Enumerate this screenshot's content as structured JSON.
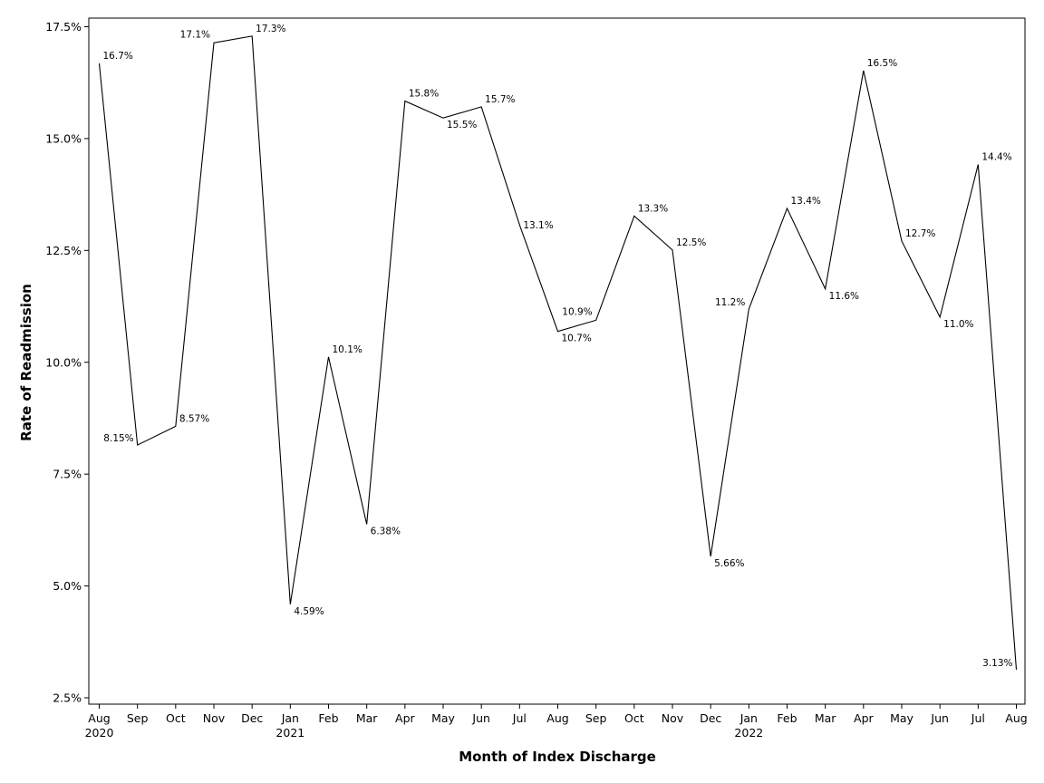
{
  "chart_data": {
    "type": "line",
    "title": "",
    "xlabel": "Month of Index Discharge",
    "ylabel": "Rate of Readmission",
    "ylim": [
      2.5,
      17.5
    ],
    "yticks": [
      {
        "value": 2.5,
        "label": "2.5%"
      },
      {
        "value": 5.0,
        "label": "5.0%"
      },
      {
        "value": 7.5,
        "label": "7.5%"
      },
      {
        "value": 10.0,
        "label": "10.0%"
      },
      {
        "value": 12.5,
        "label": "12.5%"
      },
      {
        "value": 15.0,
        "label": "15.0%"
      },
      {
        "value": 17.5,
        "label": "17.5%"
      }
    ],
    "grid": false,
    "line_color": "#000000",
    "categories": [
      {
        "month": "Aug",
        "year": "2020"
      },
      {
        "month": "Sep",
        "year": ""
      },
      {
        "month": "Oct",
        "year": ""
      },
      {
        "month": "Nov",
        "year": ""
      },
      {
        "month": "Dec",
        "year": ""
      },
      {
        "month": "Jan",
        "year": "2021"
      },
      {
        "month": "Feb",
        "year": ""
      },
      {
        "month": "Mar",
        "year": ""
      },
      {
        "month": "Apr",
        "year": ""
      },
      {
        "month": "May",
        "year": ""
      },
      {
        "month": "Jun",
        "year": ""
      },
      {
        "month": "Jul",
        "year": ""
      },
      {
        "month": "Aug",
        "year": ""
      },
      {
        "month": "Sep",
        "year": ""
      },
      {
        "month": "Oct",
        "year": ""
      },
      {
        "month": "Nov",
        "year": ""
      },
      {
        "month": "Dec",
        "year": ""
      },
      {
        "month": "Jan",
        "year": "2022"
      },
      {
        "month": "Feb",
        "year": ""
      },
      {
        "month": "Mar",
        "year": ""
      },
      {
        "month": "Apr",
        "year": ""
      },
      {
        "month": "May",
        "year": ""
      },
      {
        "month": "Jun",
        "year": ""
      },
      {
        "month": "Jul",
        "year": ""
      },
      {
        "month": "Aug",
        "year": ""
      }
    ],
    "values": [
      16.68,
      8.15,
      8.57,
      17.14,
      17.29,
      4.59,
      10.12,
      6.38,
      15.84,
      15.46,
      15.71,
      13.07,
      10.69,
      10.94,
      13.27,
      12.51,
      5.66,
      11.19,
      13.44,
      11.64,
      16.52,
      12.71,
      11.01,
      14.42,
      3.13
    ],
    "data_labels": [
      "16.7%",
      "8.15%",
      "8.57%",
      "17.1%",
      "17.3%",
      "4.59%",
      "10.1%",
      "6.38%",
      "15.8%",
      "15.5%",
      "15.7%",
      "13.1%",
      "10.7%",
      "10.9%",
      "13.3%",
      "12.5%",
      "5.66%",
      "11.2%",
      "13.4%",
      "11.6%",
      "16.5%",
      "12.7%",
      "11.0%",
      "14.4%",
      "3.13%"
    ],
    "label_positions": [
      "right-above",
      "left",
      "right-above",
      "left-above",
      "right-above",
      "right-below",
      "right-above",
      "right-below",
      "right-above",
      "right-below",
      "right-above",
      "right",
      "right-below",
      "left-above",
      "right-above",
      "right-above",
      "right-below",
      "left",
      "right-above",
      "right-below",
      "right-above",
      "right-above",
      "right-below",
      "right-above",
      "left"
    ]
  }
}
